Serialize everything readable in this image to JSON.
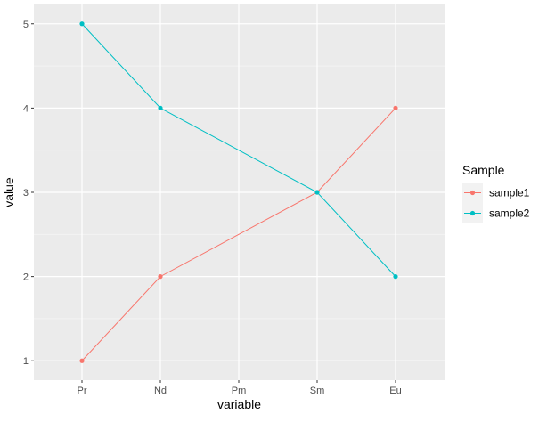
{
  "chart_data": {
    "type": "line",
    "title": "",
    "xlabel": "variable",
    "ylabel": "value",
    "categories": [
      "Pr",
      "Nd",
      "Pm",
      "Sm",
      "Eu"
    ],
    "ylim": [
      0.77,
      5.23
    ],
    "yticks": [
      1,
      2,
      3,
      4,
      5
    ],
    "grid": true,
    "legend": {
      "title": "Sample",
      "position": "right"
    },
    "series": [
      {
        "name": "sample1",
        "color": "#F8766D",
        "values": [
          1,
          2,
          null,
          3,
          4
        ]
      },
      {
        "name": "sample2",
        "color": "#00BFC4",
        "values": [
          5,
          4,
          null,
          3,
          2
        ]
      }
    ],
    "colors": {
      "panel": "#EBEBEB",
      "grid_major": "#FFFFFF",
      "grid_minor": "#F5F5F5",
      "axis_text": "#4D4D4D",
      "axis_title": "#000000"
    }
  }
}
